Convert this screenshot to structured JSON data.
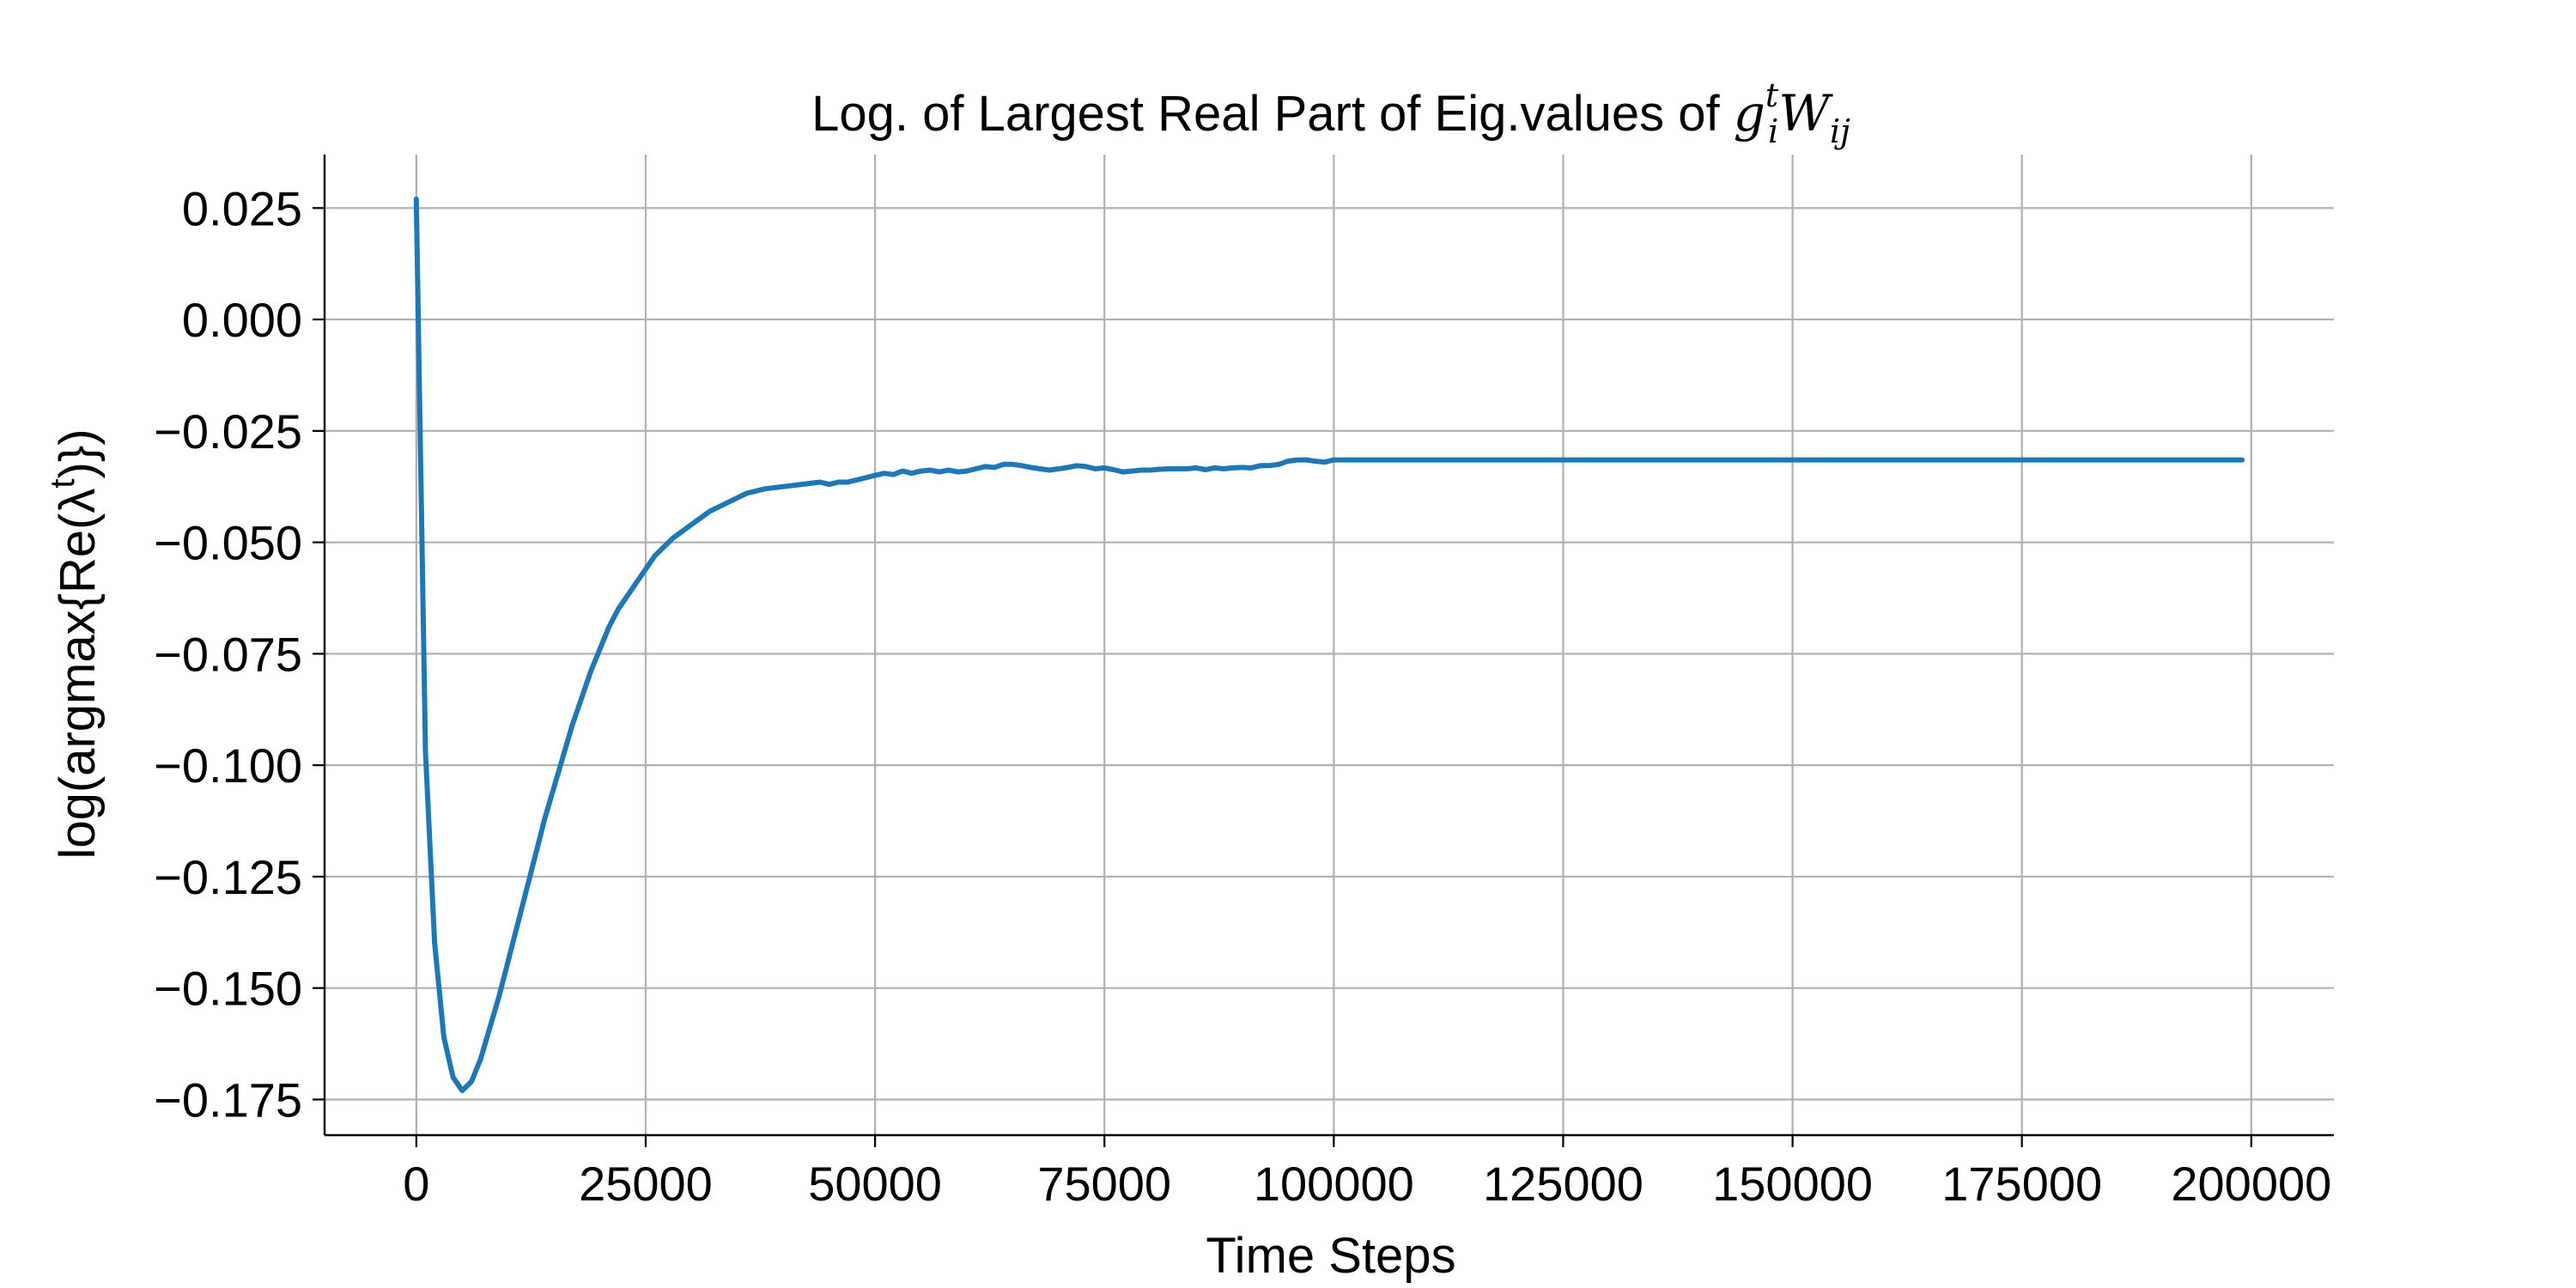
{
  "chart_data": {
    "type": "line",
    "title": {
      "prefix": "Log. of Largest Real Part of Eig.values of ",
      "math_g": "g",
      "math_g_sup": "t",
      "math_g_sub": "i",
      "math_W": "W",
      "math_W_sub": "ij"
    },
    "xlabel": "Time Steps",
    "ylabel": "log(argmax{Re(λ^t)})",
    "ylabel_parts": {
      "pre": "log(argmax{Re(λ",
      "sup": "t",
      "post": ")})"
    },
    "xlim": [
      -10000,
      209000
    ],
    "ylim": [
      -0.183,
      0.037
    ],
    "x_ticks": [
      0,
      25000,
      50000,
      75000,
      100000,
      125000,
      150000,
      175000,
      200000
    ],
    "x_tick_labels": [
      "0",
      "25000",
      "50000",
      "75000",
      "100000",
      "125000",
      "150000",
      "175000",
      "200000"
    ],
    "y_ticks": [
      0.025,
      0.0,
      -0.025,
      -0.05,
      -0.075,
      -0.1,
      -0.125,
      -0.15,
      -0.175
    ],
    "y_tick_labels": [
      "0.025",
      "0.000",
      "−0.025",
      "−0.050",
      "−0.075",
      "−0.100",
      "−0.125",
      "−0.150",
      "−0.175"
    ],
    "grid": true,
    "line_color": "#1f77b4",
    "series": [
      {
        "x": [
          0,
          1000,
          2000,
          3000,
          4000,
          5000,
          6000,
          7000,
          8000,
          9000,
          10000,
          11000,
          12000,
          13000,
          14000,
          15000,
          16000,
          17000,
          18000,
          19000,
          20000,
          21000,
          22000,
          24000,
          26000,
          28000,
          30000,
          32000,
          34000,
          36000,
          38000,
          40000,
          42000,
          44000,
          45000,
          46000,
          47000,
          48000,
          50000,
          51000,
          52000,
          53000,
          54000,
          55000,
          56000,
          57000,
          58000,
          59000,
          60000,
          61000,
          62000,
          63000,
          64000,
          65000,
          66000,
          67000,
          68000,
          69000,
          70000,
          71000,
          72000,
          73000,
          74000,
          75000,
          76000,
          77000,
          78000,
          79000,
          80000,
          81000,
          82000,
          83000,
          84000,
          85000,
          86000,
          87000,
          88000,
          89000,
          90000,
          91000,
          92000,
          93000,
          94000,
          95000,
          96000,
          97000,
          98000,
          99000,
          100000,
          120000,
          140000,
          160000,
          180000,
          199000
        ],
        "y": [
          0.027,
          -0.097,
          -0.14,
          -0.161,
          -0.17,
          -0.173,
          -0.171,
          -0.166,
          -0.159,
          -0.152,
          -0.144,
          -0.136,
          -0.128,
          -0.12,
          -0.112,
          -0.105,
          -0.098,
          -0.091,
          -0.085,
          -0.079,
          -0.074,
          -0.069,
          -0.065,
          -0.059,
          -0.053,
          -0.049,
          -0.046,
          -0.043,
          -0.041,
          -0.039,
          -0.038,
          -0.0375,
          -0.037,
          -0.0365,
          -0.037,
          -0.0365,
          -0.0365,
          -0.036,
          -0.035,
          -0.0345,
          -0.0348,
          -0.034,
          -0.0345,
          -0.034,
          -0.0338,
          -0.0342,
          -0.0338,
          -0.0342,
          -0.034,
          -0.0335,
          -0.033,
          -0.0332,
          -0.0325,
          -0.0325,
          -0.0328,
          -0.0332,
          -0.0335,
          -0.0338,
          -0.0335,
          -0.0332,
          -0.0328,
          -0.033,
          -0.0335,
          -0.0333,
          -0.0337,
          -0.0342,
          -0.034,
          -0.0338,
          -0.0338,
          -0.0336,
          -0.0335,
          -0.0335,
          -0.0335,
          -0.0333,
          -0.0337,
          -0.0333,
          -0.0335,
          -0.0333,
          -0.0332,
          -0.0333,
          -0.0328,
          -0.0328,
          -0.0325,
          -0.0318,
          -0.0315,
          -0.0315,
          -0.0318,
          -0.032,
          -0.0315,
          -0.0315,
          -0.0315,
          -0.0315,
          -0.0315,
          -0.0315
        ]
      }
    ]
  }
}
